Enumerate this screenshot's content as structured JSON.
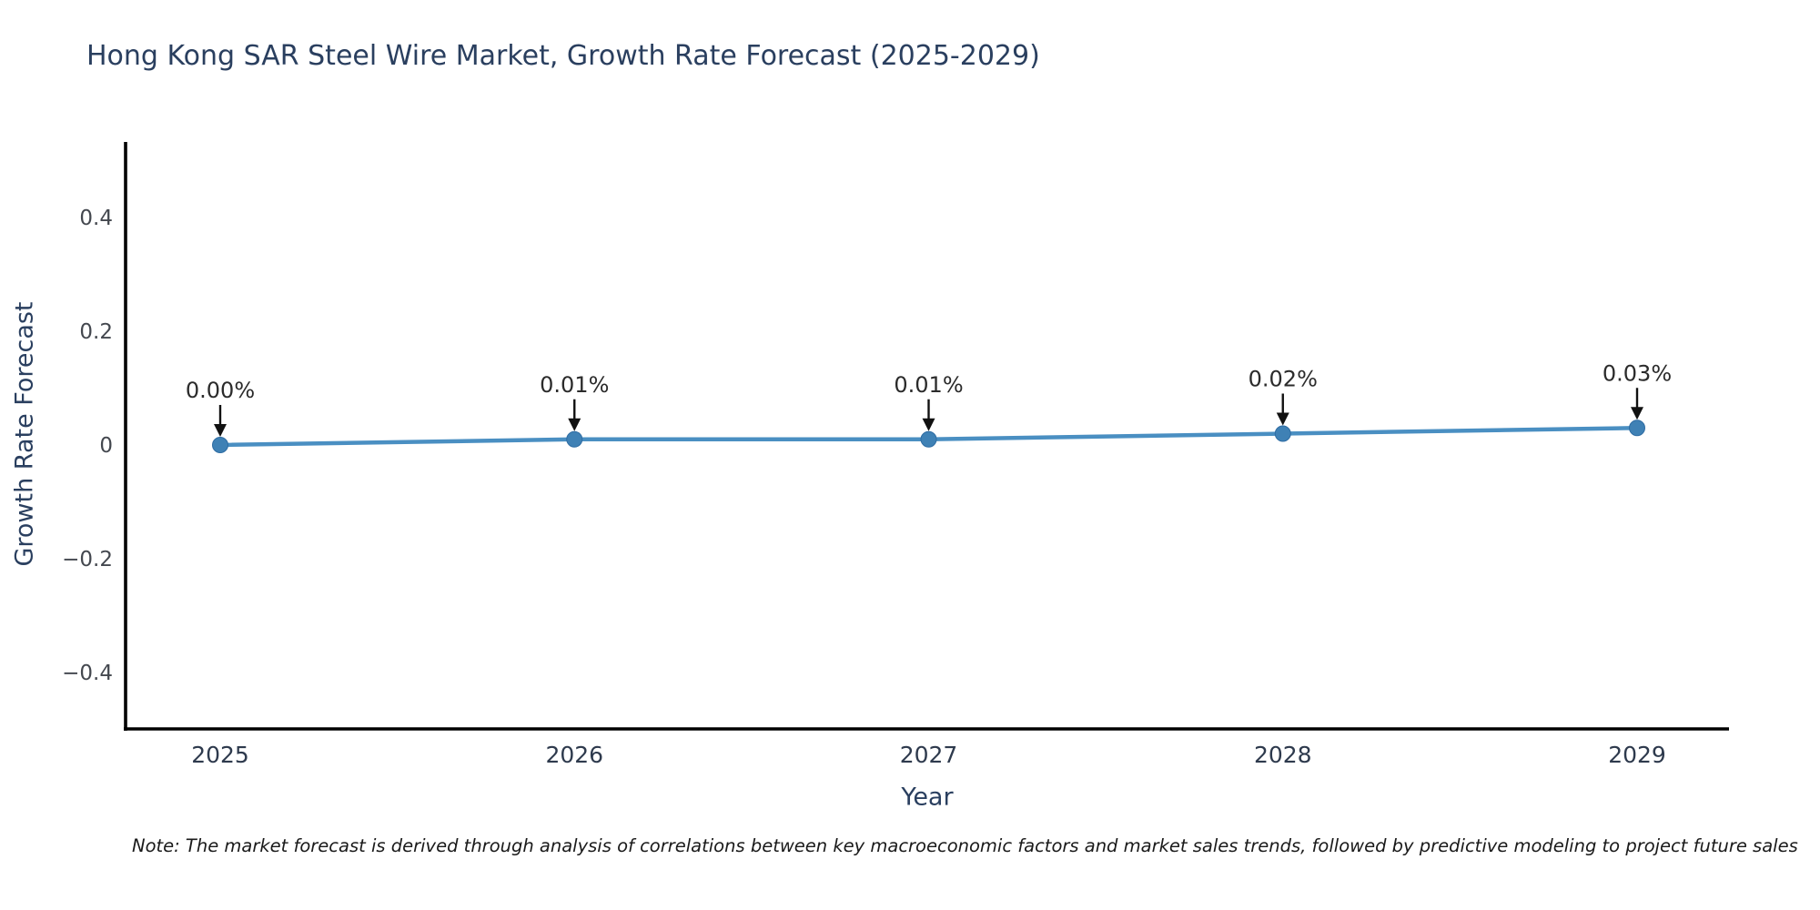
{
  "chart_data": {
    "type": "line",
    "title": "Hong Kong SAR Steel Wire Market, Growth Rate Forecast (2025-2029)",
    "xlabel": "Year",
    "ylabel": "Growth Rate Forecast",
    "categories": [
      "2025",
      "2026",
      "2027",
      "2028",
      "2029"
    ],
    "series": [
      {
        "name": "Growth Rate Forecast",
        "values": [
          0.0,
          0.01,
          0.01,
          0.02,
          0.03
        ],
        "point_labels": [
          "0.00%",
          "0.01%",
          "0.01%",
          "0.02%",
          "0.03%"
        ]
      }
    ],
    "yticks": [
      {
        "value": 0.4,
        "label": "0.4"
      },
      {
        "value": 0.2,
        "label": "0.2"
      },
      {
        "value": 0,
        "label": "0"
      },
      {
        "value": -0.2,
        "label": "−0.2"
      },
      {
        "value": -0.4,
        "label": "−0.4"
      }
    ],
    "ylim": [
      -0.5,
      0.53
    ],
    "grid": false,
    "legend": false,
    "line_color": "#4a8fc2",
    "marker_color": "#3f81b5",
    "marker_edge_color": "#2e6ca3",
    "axis_color": "#000000",
    "annotation_color": "#2b2b2b",
    "arrow_color": "#111111",
    "ytick_label_color": "#44484f",
    "xtick_label_color": "#2e3a4d"
  },
  "note": "Note: The market forecast is derived through analysis of correlations between key macroeconomic factors and market sales trends, followed by predictive modeling to project future sales"
}
